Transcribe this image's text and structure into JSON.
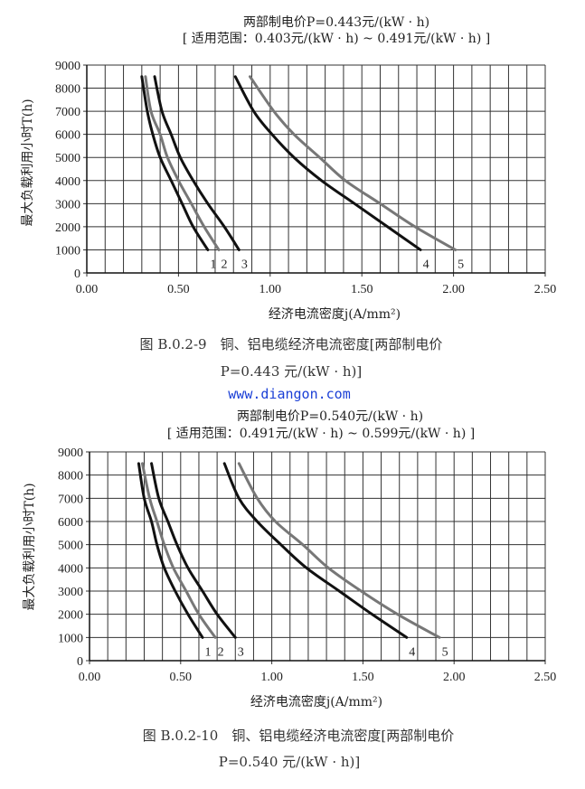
{
  "watermark": "www.diangon.com",
  "chart_data": [
    {
      "type": "line",
      "title": "两部制电价P=0.443元/(kW · h)",
      "subtitle": "[ 适用范围：0.403元/(kW · h) ~ 0.491元/(kW · h) ]",
      "xlabel": "经济电流密度j(A/mm²)",
      "ylabel": "最大负载利用小时T(h)",
      "xlim": [
        0,
        2.5
      ],
      "ylim": [
        0,
        9000
      ],
      "xticks": [
        "0.00",
        "0.50",
        "1.00",
        "1.50",
        "2.00",
        "2.50"
      ],
      "yticks": [
        "0",
        "1000",
        "2000",
        "3000",
        "4000",
        "5000",
        "6000",
        "7000",
        "8000",
        "9000"
      ],
      "grid": true,
      "caption_line1": "图 B.0.2-9　铜、铝电缆经济电流密度[两部制电价",
      "caption_line2": "P=0.443 元/(kW · h)]",
      "series": [
        {
          "name": "1",
          "color": "#111111",
          "points": [
            [
              0.3,
              8500
            ],
            [
              0.33,
              7000
            ],
            [
              0.36,
              6000
            ],
            [
              0.4,
              5000
            ],
            [
              0.46,
              4000
            ],
            [
              0.52,
              3000
            ],
            [
              0.58,
              2000
            ],
            [
              0.66,
              1000
            ]
          ]
        },
        {
          "name": "2",
          "color": "#777777",
          "points": [
            [
              0.32,
              8500
            ],
            [
              0.35,
              7000
            ],
            [
              0.4,
              6000
            ],
            [
              0.44,
              5000
            ],
            [
              0.5,
              4000
            ],
            [
              0.57,
              3000
            ],
            [
              0.64,
              2000
            ],
            [
              0.72,
              1000
            ]
          ]
        },
        {
          "name": "3",
          "color": "#111111",
          "points": [
            [
              0.37,
              8500
            ],
            [
              0.41,
              7000
            ],
            [
              0.46,
              6000
            ],
            [
              0.51,
              5000
            ],
            [
              0.58,
              4000
            ],
            [
              0.66,
              3000
            ],
            [
              0.75,
              2000
            ],
            [
              0.83,
              1000
            ]
          ]
        },
        {
          "name": "4",
          "color": "#111111",
          "points": [
            [
              0.81,
              8500
            ],
            [
              0.91,
              7000
            ],
            [
              1.01,
              6000
            ],
            [
              1.13,
              5000
            ],
            [
              1.28,
              4000
            ],
            [
              1.46,
              3000
            ],
            [
              1.64,
              2000
            ],
            [
              1.82,
              1000
            ]
          ]
        },
        {
          "name": "5",
          "color": "#777777",
          "points": [
            [
              0.89,
              8500
            ],
            [
              1.02,
              7000
            ],
            [
              1.13,
              6000
            ],
            [
              1.27,
              5000
            ],
            [
              1.41,
              4000
            ],
            [
              1.6,
              3000
            ],
            [
              1.79,
              2000
            ],
            [
              2.01,
              1000
            ]
          ]
        }
      ]
    },
    {
      "type": "line",
      "title": "两部制电价P=0.540元/(kW · h)",
      "subtitle": "[ 适用范围：0.491元/(kW · h) ~ 0.599元/(kW · h) ]",
      "xlabel": "经济电流密度j(A/mm²)",
      "ylabel": "最大负载利用小时T(h)",
      "xlim": [
        0,
        2.5
      ],
      "ylim": [
        0,
        9000
      ],
      "xticks": [
        "0.00",
        "0.50",
        "1.00",
        "1.50",
        "2.00",
        "2.50"
      ],
      "yticks": [
        "0",
        "1000",
        "2000",
        "3000",
        "4000",
        "5000",
        "6000",
        "7000",
        "8000",
        "9000"
      ],
      "grid": true,
      "caption_line1": "图 B.0.2-10　铜、铝电缆经济电流密度[两部制电价",
      "caption_line2": "P=0.540 元/(kW · h)]",
      "series": [
        {
          "name": "1",
          "color": "#111111",
          "points": [
            [
              0.27,
              8500
            ],
            [
              0.3,
              7000
            ],
            [
              0.34,
              6000
            ],
            [
              0.37,
              5000
            ],
            [
              0.41,
              4000
            ],
            [
              0.47,
              3000
            ],
            [
              0.54,
              2000
            ],
            [
              0.62,
              1000
            ]
          ]
        },
        {
          "name": "2",
          "color": "#777777",
          "points": [
            [
              0.29,
              8500
            ],
            [
              0.33,
              7000
            ],
            [
              0.37,
              6000
            ],
            [
              0.41,
              5000
            ],
            [
              0.46,
              4000
            ],
            [
              0.53,
              3000
            ],
            [
              0.6,
              2000
            ],
            [
              0.69,
              1000
            ]
          ]
        },
        {
          "name": "3",
          "color": "#111111",
          "points": [
            [
              0.34,
              8500
            ],
            [
              0.38,
              7000
            ],
            [
              0.43,
              6000
            ],
            [
              0.48,
              5000
            ],
            [
              0.54,
              4000
            ],
            [
              0.62,
              3000
            ],
            [
              0.7,
              2000
            ],
            [
              0.8,
              1000
            ]
          ]
        },
        {
          "name": "4",
          "color": "#111111",
          "points": [
            [
              0.74,
              8500
            ],
            [
              0.82,
              7000
            ],
            [
              0.92,
              6000
            ],
            [
              1.05,
              5000
            ],
            [
              1.19,
              4000
            ],
            [
              1.37,
              3000
            ],
            [
              1.55,
              2000
            ],
            [
              1.74,
              1000
            ]
          ]
        },
        {
          "name": "5",
          "color": "#777777",
          "points": [
            [
              0.82,
              8500
            ],
            [
              0.92,
              7000
            ],
            [
              1.02,
              6000
            ],
            [
              1.17,
              5000
            ],
            [
              1.31,
              4000
            ],
            [
              1.49,
              3000
            ],
            [
              1.69,
              2000
            ],
            [
              1.92,
              1000
            ]
          ]
        }
      ]
    }
  ]
}
